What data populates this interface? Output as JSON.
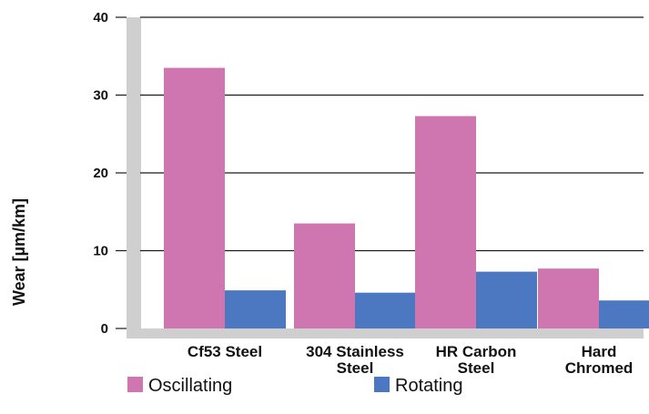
{
  "chart_data": {
    "type": "bar",
    "title": "",
    "xlabel": "",
    "ylabel": "Wear [µm/km]",
    "ylim": [
      0,
      40
    ],
    "yticks": [
      0,
      10,
      20,
      30,
      40
    ],
    "grid": "horizontal",
    "legend_position": "bottom",
    "categories": [
      [
        "Cf53 Steel"
      ],
      [
        "304 Stainless",
        "Steel"
      ],
      [
        "HR Carbon",
        "Steel"
      ],
      [
        "Hard",
        "Chromed"
      ]
    ],
    "series": [
      {
        "name": "Oscillating",
        "color": "#cf76b0",
        "values": [
          33.5,
          13.5,
          27.3,
          7.7
        ]
      },
      {
        "name": "Rotating",
        "color": "#4b78c0",
        "values": [
          4.9,
          4.6,
          7.3,
          3.6
        ]
      }
    ]
  }
}
